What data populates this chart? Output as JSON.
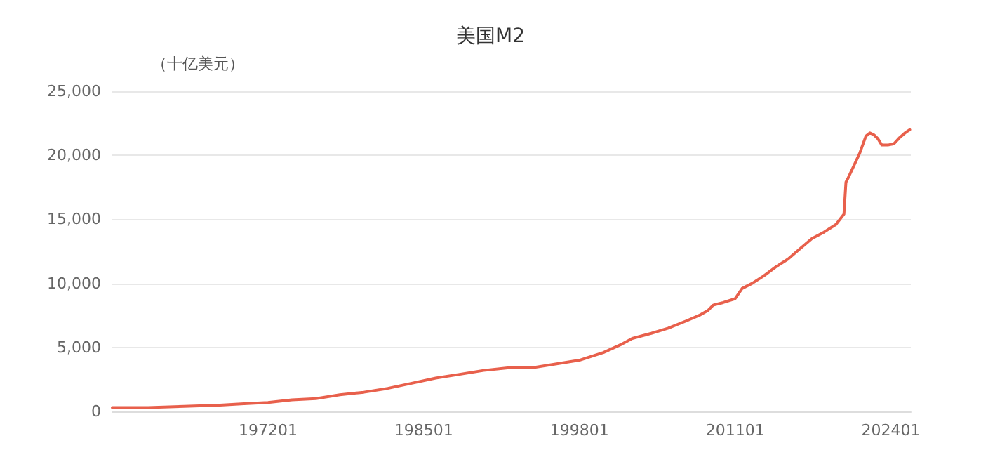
{
  "chart_data": {
    "type": "line",
    "title": "美国M2",
    "ylabel": "（十亿美元）",
    "x": [
      "1959-01",
      "1962-01",
      "1965-01",
      "1968-01",
      "1970-01",
      "1972-01",
      "1974-01",
      "1976-01",
      "1978-01",
      "1980-01",
      "1982-01",
      "1984-01",
      "1986-01",
      "1988-01",
      "1990-01",
      "1992-01",
      "1994-01",
      "1996-01",
      "1998-01",
      "2000-01",
      "2001-06",
      "2002-06",
      "2004-01",
      "2005-06",
      "2007-01",
      "2008-01",
      "2008-10",
      "2009-03",
      "2010-01",
      "2011-01",
      "2011-08",
      "2012-06",
      "2013-06",
      "2014-06",
      "2015-06",
      "2016-06",
      "2017-06",
      "2018-06",
      "2019-06",
      "2020-02",
      "2020-04",
      "2020-06",
      "2020-12",
      "2021-06",
      "2021-12",
      "2022-04",
      "2022-08",
      "2022-12",
      "2023-04",
      "2023-10",
      "2024-04",
      "2024-10",
      "2025-04",
      "2025-08"
    ],
    "series": [
      {
        "color": "#e8604c",
        "values": [
          300,
          300,
          400,
          500,
          600,
          700,
          900,
          1000,
          1300,
          1500,
          1800,
          2200,
          2600,
          2900,
          3200,
          3400,
          3400,
          3700,
          4000,
          4600,
          5200,
          5700,
          6100,
          6500,
          7100,
          7500,
          7900,
          8300,
          8500,
          8800,
          9600,
          10000,
          10600,
          11300,
          11900,
          12700,
          13500,
          14000,
          14600,
          15400,
          17900,
          18200,
          19200,
          20200,
          21500,
          21750,
          21600,
          21300,
          20800,
          20800,
          20900,
          21400,
          21800,
          22000
        ]
      }
    ],
    "ylim": [
      0,
      25000
    ],
    "yticks": [
      {
        "value": 0,
        "label": "0"
      },
      {
        "value": 5000,
        "label": "5,000"
      },
      {
        "value": 10000,
        "label": "10,000"
      },
      {
        "value": 15000,
        "label": "15,000"
      },
      {
        "value": 20000,
        "label": "20,000"
      },
      {
        "value": 25000,
        "label": "25,000"
      }
    ],
    "xlim": [
      "1959-01",
      "2025-09"
    ],
    "xticks": [
      {
        "value": "1972-01",
        "label": "197201"
      },
      {
        "value": "1985-01",
        "label": "198501"
      },
      {
        "value": "1998-01",
        "label": "199801"
      },
      {
        "value": "2011-01",
        "label": "201101"
      },
      {
        "value": "2024-01",
        "label": "202401"
      }
    ],
    "grid": "y",
    "marker": "none",
    "line_style": "solid"
  }
}
